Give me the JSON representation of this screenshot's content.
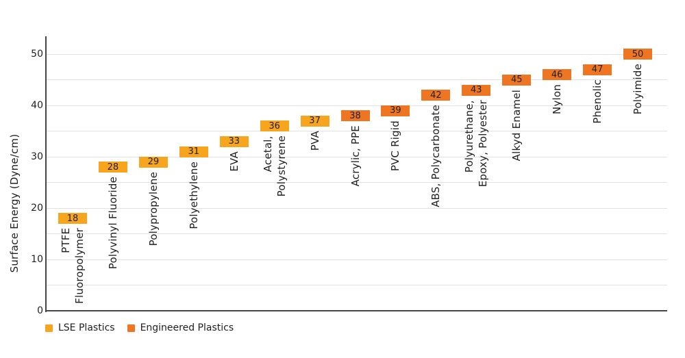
{
  "chart_data": {
    "type": "bar",
    "variant": "floating-value-markers",
    "title": "",
    "ylabel": "Surface Energy (Dyne/cm)",
    "xlabel": "",
    "ylim": [
      0,
      52
    ],
    "ytick_values": [
      0,
      10,
      20,
      30,
      40,
      50
    ],
    "grid_step": 5,
    "grid": true,
    "legend_position": "bottom-left",
    "series": [
      {
        "name": "LSE Plastics",
        "color": "#F7A41F"
      },
      {
        "name": "Engineered Plastics",
        "color": "#EE7623"
      }
    ],
    "points": [
      {
        "label": "PTFE\nFluoropolymer",
        "value": 18,
        "series": 0
      },
      {
        "label": "Polyvinyl Fluoride",
        "value": 28,
        "series": 0
      },
      {
        "label": "Polypropylene",
        "value": 29,
        "series": 0
      },
      {
        "label": "Polyethylene",
        "value": 31,
        "series": 0
      },
      {
        "label": "EVA",
        "value": 33,
        "series": 0
      },
      {
        "label": "Acetal,\nPolystyrene",
        "value": 36,
        "series": 0
      },
      {
        "label": "PVA",
        "value": 37,
        "series": 0
      },
      {
        "label": "Acrylic, PPE",
        "value": 38,
        "series": 1
      },
      {
        "label": "PVC Rigid",
        "value": 39,
        "series": 1
      },
      {
        "label": "ABS, Polycarbonate",
        "value": 42,
        "series": 1
      },
      {
        "label": "Polyurethane,\nEpoxy, Polyester",
        "value": 43,
        "series": 1
      },
      {
        "label": "Alkyd Enamel",
        "value": 45,
        "series": 1
      },
      {
        "label": "Nylon",
        "value": 46,
        "series": 1
      },
      {
        "label": "Phenolic",
        "value": 47,
        "series": 1
      },
      {
        "label": "Polyimide",
        "value": 50,
        "series": 1
      }
    ]
  },
  "colors": {
    "axis": "#454545",
    "gridline": "#E1E1E1",
    "text": "#1F1F1F",
    "background": "#FFFFFF"
  }
}
